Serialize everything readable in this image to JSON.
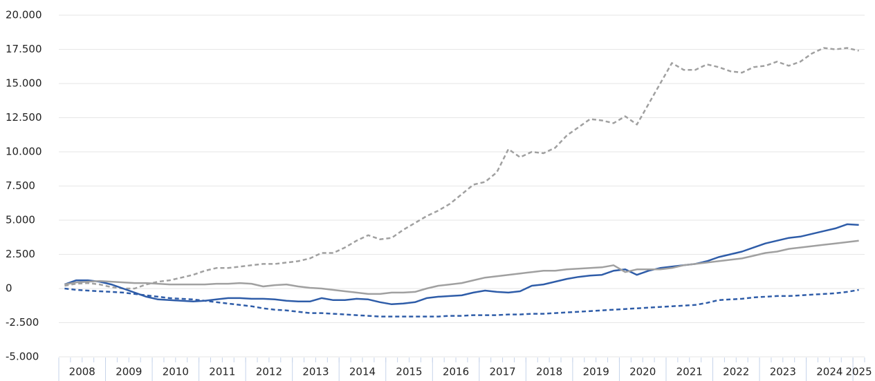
{
  "chart_data": {
    "type": "line",
    "categories": [
      "2008",
      null,
      null,
      null,
      "2009",
      null,
      null,
      null,
      "2010",
      null,
      null,
      null,
      "2011",
      null,
      null,
      null,
      "2012",
      null,
      null,
      null,
      "2013",
      null,
      null,
      null,
      "2014",
      null,
      null,
      null,
      "2015",
      null,
      null,
      null,
      "2016",
      null,
      null,
      null,
      "2017",
      null,
      null,
      null,
      "2018",
      null,
      null,
      null,
      "2019",
      null,
      null,
      null,
      "2020",
      null,
      null,
      null,
      "2021",
      null,
      null,
      null,
      "2022",
      null,
      null,
      null,
      "2023",
      null,
      null,
      null,
      "2024",
      null,
      null,
      null,
      "2025"
    ],
    "series": [
      {
        "color": "#a0a0a0",
        "dashed": true,
        "values": [
          200,
          350,
          400,
          300,
          100,
          0,
          0,
          300,
          500,
          600,
          800,
          1000,
          1300,
          1500,
          1500,
          1600,
          1700,
          1800,
          1800,
          1900,
          2000,
          2200,
          2600,
          2600,
          3000,
          3500,
          3900,
          3600,
          3700,
          4300,
          4800,
          5300,
          5700,
          6200,
          6900,
          7600,
          7800,
          8500,
          10200,
          9600,
          10000,
          9900,
          10300,
          11200,
          11800,
          12400,
          12300,
          12100,
          12600,
          12000,
          13500,
          15000,
          16500,
          16000,
          16000,
          16400,
          16200,
          15900,
          15800,
          16200,
          16300,
          16600,
          16300,
          16600,
          17200,
          17600,
          17500,
          17600,
          17400
        ]
      },
      {
        "color": "#2e5ca8",
        "dashed": false,
        "values": [
          300,
          600,
          600,
          500,
          300,
          0,
          -300,
          -600,
          -800,
          -850,
          -900,
          -950,
          -900,
          -800,
          -700,
          -700,
          -750,
          -750,
          -800,
          -900,
          -950,
          -950,
          -700,
          -850,
          -850,
          -750,
          -800,
          -1000,
          -1150,
          -1100,
          -1000,
          -700,
          -600,
          -550,
          -500,
          -300,
          -150,
          -250,
          -300,
          -200,
          200,
          300,
          500,
          700,
          850,
          950,
          1000,
          1300,
          1400,
          1000,
          1300,
          1500,
          1600,
          1700,
          1800,
          2000,
          2300,
          2500,
          2700,
          3000,
          3300,
          3500,
          3700,
          3800,
          4000,
          4200,
          4400,
          4700,
          4650
        ]
      },
      {
        "color": "#a0a0a0",
        "dashed": false,
        "values": [
          300,
          450,
          500,
          550,
          500,
          450,
          400,
          400,
          350,
          300,
          300,
          300,
          300,
          350,
          350,
          400,
          350,
          150,
          250,
          300,
          150,
          50,
          0,
          -100,
          -200,
          -300,
          -400,
          -400,
          -300,
          -300,
          -250,
          0,
          200,
          300,
          400,
          600,
          800,
          900,
          1000,
          1100,
          1200,
          1300,
          1300,
          1400,
          1450,
          1500,
          1550,
          1700,
          1200,
          1400,
          1400,
          1400,
          1500,
          1700,
          1800,
          1900,
          2000,
          2100,
          2200,
          2400,
          2600,
          2700,
          2900,
          3000,
          3100,
          3200,
          3300,
          3400,
          3500
        ]
      },
      {
        "color": "#2e5ca8",
        "dashed": true,
        "values": [
          0,
          -100,
          -150,
          -200,
          -250,
          -300,
          -400,
          -500,
          -600,
          -700,
          -750,
          -800,
          -900,
          -1000,
          -1100,
          -1200,
          -1300,
          -1450,
          -1550,
          -1600,
          -1700,
          -1800,
          -1800,
          -1850,
          -1900,
          -1950,
          -2000,
          -2050,
          -2050,
          -2050,
          -2050,
          -2050,
          -2050,
          -2000,
          -2000,
          -1950,
          -1950,
          -1950,
          -1900,
          -1900,
          -1850,
          -1850,
          -1800,
          -1750,
          -1700,
          -1650,
          -1600,
          -1550,
          -1500,
          -1450,
          -1400,
          -1350,
          -1300,
          -1250,
          -1200,
          -1050,
          -850,
          -800,
          -750,
          -650,
          -600,
          -550,
          -550,
          -500,
          -450,
          -400,
          -350,
          -250,
          -100
        ]
      }
    ],
    "ylim": [
      -5000,
      20000
    ],
    "yticks": [
      {
        "value": -5000,
        "label": "-5.000"
      },
      {
        "value": -2500,
        "label": "-2.500"
      },
      0,
      {
        "value": 2500,
        "label": "2.500"
      },
      {
        "value": 5000,
        "label": "5.000"
      },
      {
        "value": 7500,
        "label": "7.500"
      },
      {
        "value": 10000,
        "label": "10.000"
      },
      {
        "value": 12500,
        "label": "12.500"
      },
      {
        "value": 15000,
        "label": "15.000"
      },
      {
        "value": 17500,
        "label": "17.500"
      },
      {
        "value": 20000,
        "label": "20.000"
      }
    ],
    "grid": true
  }
}
